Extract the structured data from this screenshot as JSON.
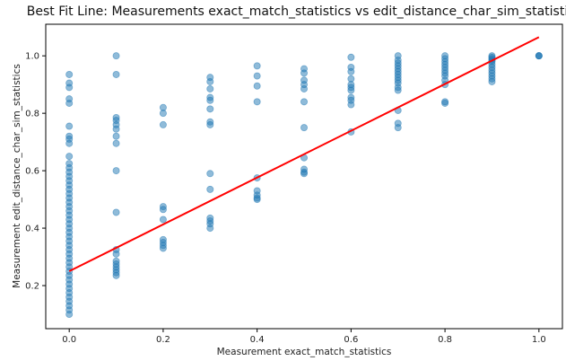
{
  "chart_data": {
    "type": "scatter",
    "title": "Best Fit Line: Measurements exact_match_statistics vs edit_distance_char_sim_statistics",
    "xlabel": "Measurement exact_match_statistics",
    "ylabel": "Measurement edit_distance_char_sim_statistics",
    "xlim": [
      -0.05,
      1.05
    ],
    "ylim": [
      0.05,
      1.11
    ],
    "xticks": [
      "0.0",
      "0.2",
      "0.4",
      "0.6",
      "0.8",
      "1.0"
    ],
    "yticks": [
      "0.2",
      "0.4",
      "0.6",
      "0.8",
      "1.0"
    ],
    "grid": false,
    "colors": {
      "points": "#1f77b4",
      "fit_line": "#ff0000"
    },
    "fit_line": {
      "x": [
        0.0,
        1.0
      ],
      "y": [
        0.25,
        1.065
      ]
    },
    "points": [
      [
        0.0,
        0.935
      ],
      [
        0.0,
        0.905
      ],
      [
        0.0,
        0.89
      ],
      [
        0.0,
        0.85
      ],
      [
        0.0,
        0.835
      ],
      [
        0.0,
        0.755
      ],
      [
        0.0,
        0.72
      ],
      [
        0.0,
        0.71
      ],
      [
        0.0,
        0.695
      ],
      [
        0.0,
        0.65
      ],
      [
        0.0,
        0.625
      ],
      [
        0.0,
        0.61
      ],
      [
        0.0,
        0.595
      ],
      [
        0.0,
        0.58
      ],
      [
        0.0,
        0.565
      ],
      [
        0.0,
        0.55
      ],
      [
        0.0,
        0.535
      ],
      [
        0.0,
        0.52
      ],
      [
        0.0,
        0.505
      ],
      [
        0.0,
        0.49
      ],
      [
        0.0,
        0.475
      ],
      [
        0.0,
        0.46
      ],
      [
        0.0,
        0.445
      ],
      [
        0.0,
        0.43
      ],
      [
        0.0,
        0.415
      ],
      [
        0.0,
        0.4
      ],
      [
        0.0,
        0.385
      ],
      [
        0.0,
        0.37
      ],
      [
        0.0,
        0.355
      ],
      [
        0.0,
        0.34
      ],
      [
        0.0,
        0.325
      ],
      [
        0.0,
        0.31
      ],
      [
        0.0,
        0.295
      ],
      [
        0.0,
        0.28
      ],
      [
        0.0,
        0.265
      ],
      [
        0.0,
        0.25
      ],
      [
        0.0,
        0.235
      ],
      [
        0.0,
        0.22
      ],
      [
        0.0,
        0.205
      ],
      [
        0.0,
        0.19
      ],
      [
        0.0,
        0.175
      ],
      [
        0.0,
        0.16
      ],
      [
        0.0,
        0.145
      ],
      [
        0.0,
        0.13
      ],
      [
        0.0,
        0.115
      ],
      [
        0.0,
        0.1
      ],
      [
        0.1,
        1.0
      ],
      [
        0.1,
        0.935
      ],
      [
        0.1,
        0.785
      ],
      [
        0.1,
        0.775
      ],
      [
        0.1,
        0.76
      ],
      [
        0.1,
        0.745
      ],
      [
        0.1,
        0.72
      ],
      [
        0.1,
        0.695
      ],
      [
        0.1,
        0.6
      ],
      [
        0.1,
        0.455
      ],
      [
        0.1,
        0.325
      ],
      [
        0.1,
        0.31
      ],
      [
        0.1,
        0.285
      ],
      [
        0.1,
        0.275
      ],
      [
        0.1,
        0.265
      ],
      [
        0.1,
        0.255
      ],
      [
        0.1,
        0.245
      ],
      [
        0.1,
        0.235
      ],
      [
        0.2,
        0.82
      ],
      [
        0.2,
        0.8
      ],
      [
        0.2,
        0.76
      ],
      [
        0.2,
        0.475
      ],
      [
        0.2,
        0.465
      ],
      [
        0.2,
        0.43
      ],
      [
        0.2,
        0.36
      ],
      [
        0.2,
        0.35
      ],
      [
        0.2,
        0.34
      ],
      [
        0.2,
        0.33
      ],
      [
        0.3,
        0.925
      ],
      [
        0.3,
        0.91
      ],
      [
        0.3,
        0.885
      ],
      [
        0.3,
        0.855
      ],
      [
        0.3,
        0.845
      ],
      [
        0.3,
        0.815
      ],
      [
        0.3,
        0.77
      ],
      [
        0.3,
        0.76
      ],
      [
        0.3,
        0.59
      ],
      [
        0.3,
        0.535
      ],
      [
        0.3,
        0.435
      ],
      [
        0.3,
        0.425
      ],
      [
        0.3,
        0.415
      ],
      [
        0.3,
        0.4
      ],
      [
        0.4,
        0.965
      ],
      [
        0.4,
        0.93
      ],
      [
        0.4,
        0.895
      ],
      [
        0.4,
        0.84
      ],
      [
        0.4,
        0.575
      ],
      [
        0.4,
        0.53
      ],
      [
        0.4,
        0.515
      ],
      [
        0.4,
        0.505
      ],
      [
        0.4,
        0.5
      ],
      [
        0.5,
        0.955
      ],
      [
        0.5,
        0.94
      ],
      [
        0.5,
        0.915
      ],
      [
        0.5,
        0.9
      ],
      [
        0.5,
        0.885
      ],
      [
        0.5,
        0.84
      ],
      [
        0.5,
        0.75
      ],
      [
        0.5,
        0.645
      ],
      [
        0.5,
        0.605
      ],
      [
        0.5,
        0.595
      ],
      [
        0.5,
        0.59
      ],
      [
        0.6,
        0.995
      ],
      [
        0.6,
        0.96
      ],
      [
        0.6,
        0.945
      ],
      [
        0.6,
        0.92
      ],
      [
        0.6,
        0.9
      ],
      [
        0.6,
        0.89
      ],
      [
        0.6,
        0.88
      ],
      [
        0.6,
        0.855
      ],
      [
        0.6,
        0.845
      ],
      [
        0.6,
        0.83
      ],
      [
        0.6,
        0.735
      ],
      [
        0.7,
        1.0
      ],
      [
        0.7,
        0.985
      ],
      [
        0.7,
        0.975
      ],
      [
        0.7,
        0.965
      ],
      [
        0.7,
        0.955
      ],
      [
        0.7,
        0.945
      ],
      [
        0.7,
        0.935
      ],
      [
        0.7,
        0.925
      ],
      [
        0.7,
        0.915
      ],
      [
        0.7,
        0.905
      ],
      [
        0.7,
        0.89
      ],
      [
        0.7,
        0.88
      ],
      [
        0.7,
        0.81
      ],
      [
        0.7,
        0.765
      ],
      [
        0.7,
        0.75
      ],
      [
        0.8,
        1.0
      ],
      [
        0.8,
        0.99
      ],
      [
        0.8,
        0.98
      ],
      [
        0.8,
        0.97
      ],
      [
        0.8,
        0.96
      ],
      [
        0.8,
        0.95
      ],
      [
        0.8,
        0.94
      ],
      [
        0.8,
        0.93
      ],
      [
        0.8,
        0.915
      ],
      [
        0.8,
        0.9
      ],
      [
        0.8,
        0.84
      ],
      [
        0.8,
        0.835
      ],
      [
        0.9,
        1.0
      ],
      [
        0.9,
        0.995
      ],
      [
        0.9,
        0.99
      ],
      [
        0.9,
        0.985
      ],
      [
        0.9,
        0.98
      ],
      [
        0.9,
        0.97
      ],
      [
        0.9,
        0.96
      ],
      [
        0.9,
        0.95
      ],
      [
        0.9,
        0.94
      ],
      [
        0.9,
        0.93
      ],
      [
        0.9,
        0.92
      ],
      [
        0.9,
        0.91
      ],
      [
        1.0,
        1.0
      ],
      [
        1.0,
        1.0
      ],
      [
        1.0,
        1.0
      ]
    ]
  }
}
